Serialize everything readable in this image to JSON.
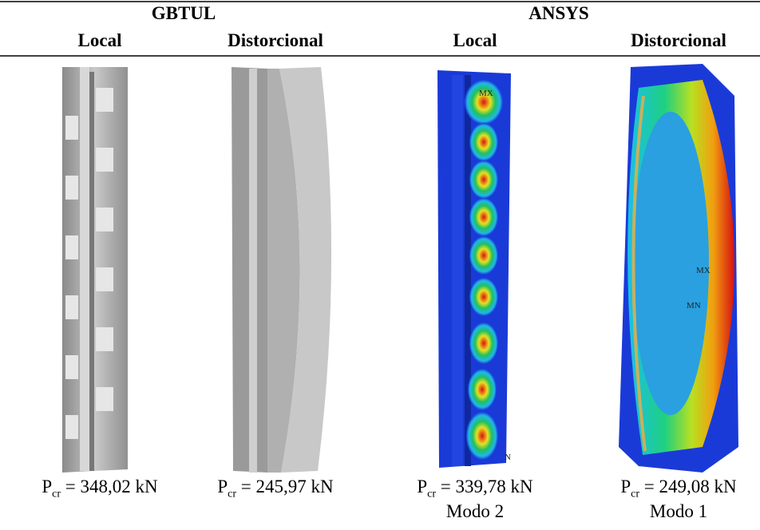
{
  "groups": [
    "GBTUL",
    "ANSYS"
  ],
  "columns": [
    {
      "title": "Local",
      "caption": {
        "symbol": "P",
        "subscript": "cr",
        "text": "= 348,02 kN"
      }
    },
    {
      "title": "Distorcional",
      "caption": {
        "symbol": "P",
        "subscript": "cr",
        "text": "= 245,97 kN"
      }
    },
    {
      "title": "Local",
      "caption": {
        "symbol": "P",
        "subscript": "cr",
        "text": "= 339,78 kN"
      },
      "mode": "Modo 2",
      "annotations": [
        "MX",
        "N"
      ]
    },
    {
      "title": "Distorcional",
      "caption": {
        "symbol": "P",
        "subscript": "cr",
        "text": "= 249,08 kN"
      },
      "mode": "Modo 1",
      "annotations": [
        "MX",
        "MN"
      ]
    }
  ]
}
